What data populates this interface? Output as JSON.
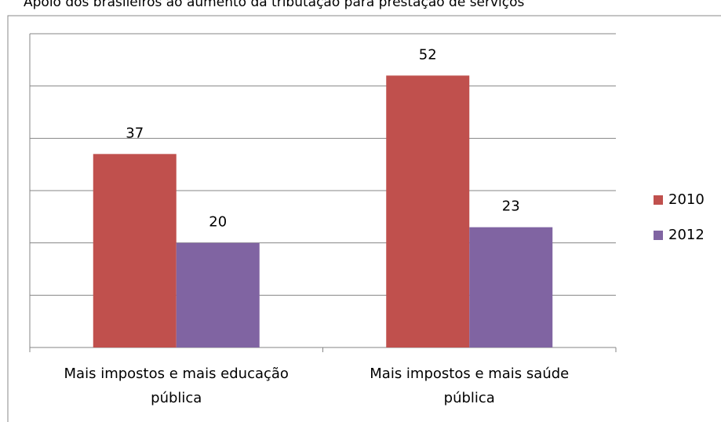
{
  "chart_data": {
    "type": "bar",
    "title": "Apoio dos brasileiros ao aumento da tributação para prestação de serviços",
    "categories": [
      "Mais impostos e mais educação pública",
      "Mais impostos e mais saúde pública"
    ],
    "series": [
      {
        "name": "2010",
        "color": "#c0504d",
        "values": [
          37,
          52
        ]
      },
      {
        "name": "2012",
        "color": "#8064a2",
        "values": [
          20,
          23
        ]
      }
    ],
    "ylim": [
      0,
      60
    ],
    "yticks": [
      0,
      10,
      20,
      30,
      40,
      50,
      60
    ],
    "grid": true,
    "legend": "right"
  }
}
